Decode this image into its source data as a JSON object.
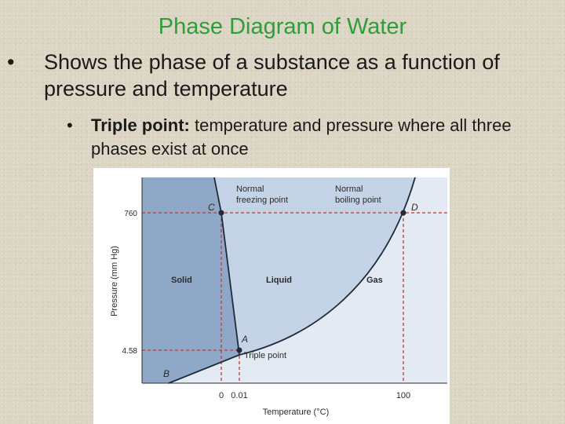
{
  "slide": {
    "title": "Phase Diagram of Water",
    "bullets": [
      {
        "text": "Shows the phase of a substance as a function of pressure and temperature"
      },
      {
        "bold": "Triple point:",
        "text": " temperature and pressure where all three phases exist at once"
      }
    ]
  },
  "diagram": {
    "ylabel": "Pressure (mm Hg)",
    "xlabel": "Temperature (°C)",
    "y_ticks": [
      "760",
      "4.58"
    ],
    "x_ticks": [
      "0",
      "0.01",
      "100"
    ],
    "regions": [
      "Solid",
      "Liquid",
      "Gas"
    ],
    "points": {
      "A": "A",
      "B": "B",
      "C": "C",
      "D": "D"
    },
    "annotations": {
      "freezing_line1": "Normal",
      "freezing_line2": "freezing point",
      "boiling_line1": "Normal",
      "boiling_line2": "boiling point",
      "triple": "Triple point"
    },
    "colors": {
      "solid": "#8fa8c8",
      "liquid": "#c4d3e6",
      "gas": "#e4eaf4",
      "dashed": "#c0392b",
      "curve": "#1f2b3a"
    }
  }
}
